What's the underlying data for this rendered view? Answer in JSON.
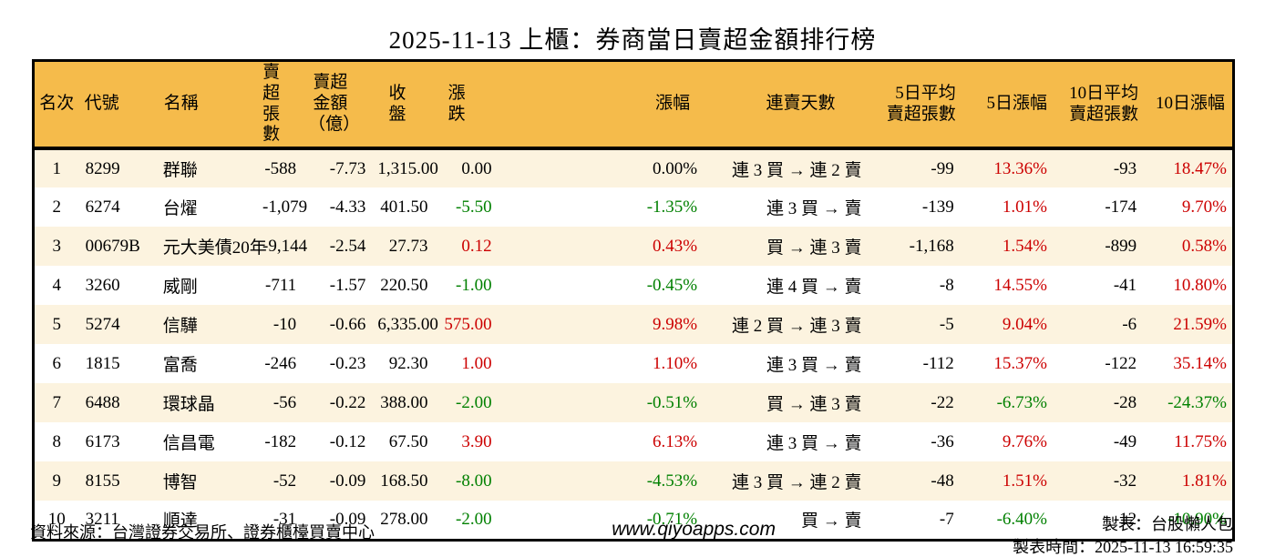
{
  "title": "2025-11-13 上櫃：券商當日賣超金額排行榜",
  "table": {
    "headers": {
      "rank": "名次",
      "code": "代號",
      "name": "名稱",
      "net_sell_volume": "賣超張數",
      "net_sell_amount": "賣超金額\n（億）",
      "close": "收盤",
      "change": "漲跌",
      "change_pct": "漲幅",
      "streak": "連賣天數",
      "avg5_volume": "5日平均\n賣超張數",
      "pct5": "5日漲幅",
      "avg10_volume": "10日平均\n賣超張數",
      "pct10": "10日漲幅"
    },
    "rows": [
      {
        "rank": "1",
        "code": "8299",
        "name": "群聯",
        "net_sell_volume": "-588",
        "net_sell_amount": "-7.73",
        "close": "1,315.00",
        "change": "0.00",
        "change_pct": "0.00%",
        "change_dir": "flat",
        "streak": "連 3 買 → 連 2 賣",
        "avg5_volume": "-99",
        "pct5": "13.36%",
        "pct5_dir": "up",
        "avg10_volume": "-93",
        "pct10": "18.47%",
        "pct10_dir": "up"
      },
      {
        "rank": "2",
        "code": "6274",
        "name": "台燿",
        "net_sell_volume": "-1,079",
        "net_sell_amount": "-4.33",
        "close": "401.50",
        "change": "-5.50",
        "change_pct": "-1.35%",
        "change_dir": "down",
        "streak": "連 3 買 → 賣",
        "avg5_volume": "-139",
        "pct5": "1.01%",
        "pct5_dir": "up",
        "avg10_volume": "-174",
        "pct10": "9.70%",
        "pct10_dir": "up"
      },
      {
        "rank": "3",
        "code": "00679B",
        "name": "元大美債20年",
        "net_sell_volume": "-9,144",
        "net_sell_amount": "-2.54",
        "close": "27.73",
        "change": "0.12",
        "change_pct": "0.43%",
        "change_dir": "up",
        "streak": "買 → 連 3 賣",
        "avg5_volume": "-1,168",
        "pct5": "1.54%",
        "pct5_dir": "up",
        "avg10_volume": "-899",
        "pct10": "0.58%",
        "pct10_dir": "up"
      },
      {
        "rank": "4",
        "code": "3260",
        "name": "威剛",
        "net_sell_volume": "-711",
        "net_sell_amount": "-1.57",
        "close": "220.50",
        "change": "-1.00",
        "change_pct": "-0.45%",
        "change_dir": "down",
        "streak": "連 4 買 → 賣",
        "avg5_volume": "-8",
        "pct5": "14.55%",
        "pct5_dir": "up",
        "avg10_volume": "-41",
        "pct10": "10.80%",
        "pct10_dir": "up"
      },
      {
        "rank": "5",
        "code": "5274",
        "name": "信驊",
        "net_sell_volume": "-10",
        "net_sell_amount": "-0.66",
        "close": "6,335.00",
        "change": "575.00",
        "change_pct": "9.98%",
        "change_dir": "up",
        "streak": "連 2 買 → 連 3 賣",
        "avg5_volume": "-5",
        "pct5": "9.04%",
        "pct5_dir": "up",
        "avg10_volume": "-6",
        "pct10": "21.59%",
        "pct10_dir": "up"
      },
      {
        "rank": "6",
        "code": "1815",
        "name": "富喬",
        "net_sell_volume": "-246",
        "net_sell_amount": "-0.23",
        "close": "92.30",
        "change": "1.00",
        "change_pct": "1.10%",
        "change_dir": "up",
        "streak": "連 3 買 → 賣",
        "avg5_volume": "-112",
        "pct5": "15.37%",
        "pct5_dir": "up",
        "avg10_volume": "-122",
        "pct10": "35.14%",
        "pct10_dir": "up"
      },
      {
        "rank": "7",
        "code": "6488",
        "name": "環球晶",
        "net_sell_volume": "-56",
        "net_sell_amount": "-0.22",
        "close": "388.00",
        "change": "-2.00",
        "change_pct": "-0.51%",
        "change_dir": "down",
        "streak": "買 → 連 3 賣",
        "avg5_volume": "-22",
        "pct5": "-6.73%",
        "pct5_dir": "down",
        "avg10_volume": "-28",
        "pct10": "-24.37%",
        "pct10_dir": "down"
      },
      {
        "rank": "8",
        "code": "6173",
        "name": "信昌電",
        "net_sell_volume": "-182",
        "net_sell_amount": "-0.12",
        "close": "67.50",
        "change": "3.90",
        "change_pct": "6.13%",
        "change_dir": "up",
        "streak": "連 3 買 → 賣",
        "avg5_volume": "-36",
        "pct5": "9.76%",
        "pct5_dir": "up",
        "avg10_volume": "-49",
        "pct10": "11.75%",
        "pct10_dir": "up"
      },
      {
        "rank": "9",
        "code": "8155",
        "name": "博智",
        "net_sell_volume": "-52",
        "net_sell_amount": "-0.09",
        "close": "168.50",
        "change": "-8.00",
        "change_pct": "-4.53%",
        "change_dir": "down",
        "streak": "連 3 買 → 連 2 賣",
        "avg5_volume": "-48",
        "pct5": "1.51%",
        "pct5_dir": "up",
        "avg10_volume": "-32",
        "pct10": "1.81%",
        "pct10_dir": "up"
      },
      {
        "rank": "10",
        "code": "3211",
        "name": "順達",
        "net_sell_volume": "-31",
        "net_sell_amount": "-0.09",
        "close": "278.00",
        "change": "-2.00",
        "change_pct": "-0.71%",
        "change_dir": "down",
        "streak": "買 → 賣",
        "avg5_volume": "-7",
        "pct5": "-6.40%",
        "pct5_dir": "down",
        "avg10_volume": "-12",
        "pct10": "-10.90%",
        "pct10_dir": "down"
      }
    ]
  },
  "footer": {
    "source": "資料來源：台灣證券交易所、證券櫃檯買賣中心",
    "website": "www.qiyoapps.com",
    "creator": "製表：台股懶人包",
    "created": "製表時間：2025-11-13 16:59:35"
  },
  "colors": {
    "header_bg": "#F5BB4B",
    "row_stripe": "#FCF3DF",
    "up_red": "#CC0000",
    "down_green": "#008000",
    "border": "#000000"
  }
}
